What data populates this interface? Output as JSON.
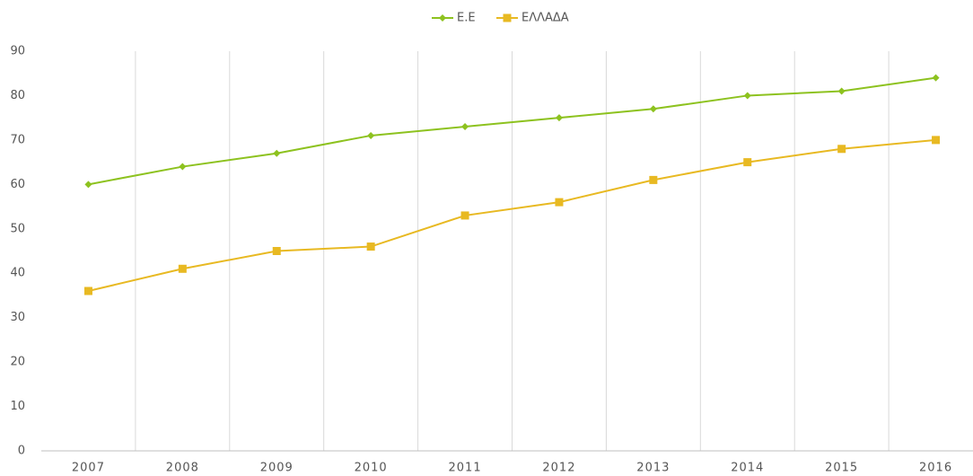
{
  "chart_data": {
    "type": "line",
    "categories": [
      "2007",
      "2008",
      "2009",
      "2010",
      "2011",
      "2012",
      "2013",
      "2014",
      "2015",
      "2016"
    ],
    "series": [
      {
        "name": "Ε.Ε",
        "color": "#8dc21f",
        "marker": "diamond",
        "values": [
          60,
          64,
          67,
          71,
          73,
          75,
          77,
          80,
          81,
          84
        ]
      },
      {
        "name": "ΕΛΛΑΔΑ",
        "color": "#e8b922",
        "marker": "square",
        "values": [
          36,
          41,
          45,
          46,
          53,
          56,
          61,
          65,
          68,
          70
        ]
      }
    ],
    "ylim": [
      0,
      90
    ],
    "yticks": [
      0,
      10,
      20,
      30,
      40,
      50,
      60,
      70,
      80,
      90
    ],
    "legend": "top"
  }
}
